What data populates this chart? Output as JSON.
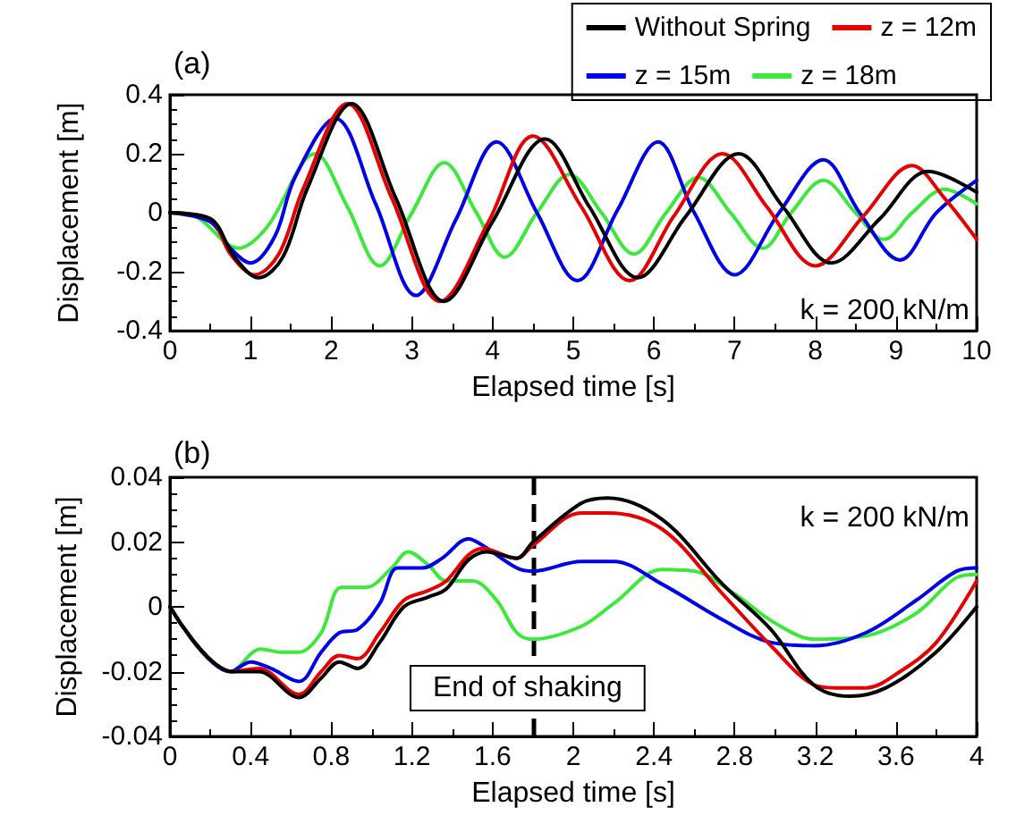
{
  "chart_data": [
    {
      "type": "line",
      "title": "(a)",
      "xlabel": "Elapsed time [s]",
      "ylabel": "Displacement [m]",
      "xlim": [
        0,
        10
      ],
      "xticks": [
        0,
        1,
        2,
        3,
        4,
        5,
        6,
        7,
        8,
        9,
        10
      ],
      "ylim": [
        -0.4,
        0.4
      ],
      "yticks": [
        -0.4,
        -0.2,
        0,
        0.2,
        0.4
      ],
      "grid": false,
      "legend": "top right",
      "marker": "none",
      "line_style": "solid",
      "annotations": [
        "k = 200 kN/m"
      ],
      "series": [
        {
          "name": "Without Spring",
          "color": "#000000",
          "x": [
            0,
            0.5,
            0.8,
            1.1,
            1.4,
            1.7,
            2.25,
            2.8,
            3.4,
            4.0,
            4.65,
            5.2,
            5.8,
            6.4,
            7.05,
            7.6,
            8.2,
            8.8,
            9.4,
            10
          ],
          "values": [
            0,
            -0.02,
            -0.15,
            -0.22,
            -0.15,
            0.08,
            0.37,
            0.05,
            -0.3,
            -0.03,
            0.25,
            0.02,
            -0.22,
            -0.01,
            0.2,
            0.02,
            -0.17,
            -0.02,
            0.14,
            0.07
          ]
        },
        {
          "name": "z = 12m",
          "color": "#e80000",
          "x": [
            0,
            0.5,
            0.75,
            1.05,
            1.35,
            1.65,
            2.2,
            2.75,
            3.35,
            3.95,
            4.5,
            5.1,
            5.7,
            6.25,
            6.85,
            7.4,
            8.0,
            8.6,
            9.2,
            9.6,
            10
          ],
          "values": [
            0,
            -0.02,
            -0.14,
            -0.21,
            -0.14,
            0.08,
            0.37,
            0.05,
            -0.3,
            -0.03,
            0.26,
            0.02,
            -0.23,
            -0.01,
            0.2,
            0.02,
            -0.18,
            -0.01,
            0.16,
            0.05,
            -0.09
          ]
        },
        {
          "name": "z = 15m",
          "color": "#0000e8",
          "x": [
            0,
            0.5,
            0.75,
            1.0,
            1.3,
            1.55,
            2.05,
            2.55,
            3.05,
            3.55,
            4.05,
            4.55,
            5.05,
            5.55,
            6.05,
            6.5,
            7.0,
            7.55,
            8.1,
            8.55,
            9.05,
            9.5,
            10
          ],
          "values": [
            0,
            -0.03,
            -0.12,
            -0.17,
            -0.08,
            0.12,
            0.32,
            0.03,
            -0.28,
            -0.02,
            0.24,
            0,
            -0.23,
            0.01,
            0.24,
            0,
            -0.21,
            0,
            0.18,
            0,
            -0.16,
            0,
            0.11
          ]
        },
        {
          "name": "z = 18m",
          "color": "#3de83d",
          "x": [
            0,
            0.3,
            0.85,
            1.2,
            1.8,
            2.2,
            2.6,
            3.0,
            3.4,
            3.8,
            4.15,
            4.55,
            4.95,
            5.35,
            5.75,
            6.15,
            6.55,
            6.95,
            7.35,
            7.7,
            8.1,
            8.5,
            8.85,
            9.2,
            9.6,
            10
          ],
          "values": [
            0,
            -0.01,
            -0.12,
            -0.05,
            0.2,
            0.02,
            -0.18,
            0,
            0.17,
            0,
            -0.15,
            0,
            0.13,
            0,
            -0.14,
            0,
            0.12,
            0,
            -0.12,
            0,
            0.11,
            0,
            -0.09,
            0,
            0.08,
            0.03
          ]
        }
      ]
    },
    {
      "type": "line",
      "title": "(b)",
      "xlabel": "Elapsed time [s]",
      "ylabel": "Displacement [m]",
      "xlim": [
        0,
        4
      ],
      "xticks": [
        0,
        0.4,
        0.8,
        1.2,
        1.6,
        2,
        2.4,
        2.8,
        3.2,
        3.6,
        4
      ],
      "ylim": [
        -0.04,
        0.04
      ],
      "yticks": [
        -0.04,
        -0.02,
        0,
        0.02,
        0.04
      ],
      "grid": false,
      "legend": false,
      "marker": "none",
      "line_style": "solid",
      "annotations": [
        "End of shaking",
        "k = 200 kN/m"
      ],
      "ref_lines": [
        {
          "axis": "x",
          "value": 1.8,
          "color": "#000000",
          "line_style": "dashed"
        }
      ],
      "series": [
        {
          "color": "#000000",
          "x": [
            0,
            0.31,
            0.44,
            0.64,
            0.75,
            0.84,
            0.93,
            1.04,
            1.16,
            1.28,
            1.37,
            1.48,
            1.57,
            1.72,
            1.8,
            2.04,
            2.17,
            2.44,
            2.74,
            2.98,
            3.19,
            3.37,
            3.55,
            3.79,
            4.0
          ],
          "values": [
            0,
            -0.02,
            -0.02,
            -0.028,
            -0.022,
            -0.017,
            -0.019,
            -0.011,
            0,
            0.003,
            0.0055,
            0.0145,
            0.017,
            0.015,
            0.02,
            0.032,
            0.0336,
            0.027,
            0.007,
            -0.007,
            -0.024,
            -0.0276,
            -0.025,
            -0.0145,
            0
          ]
        },
        {
          "color": "#e80000",
          "x": [
            0,
            0.31,
            0.44,
            0.64,
            0.75,
            0.84,
            0.93,
            1.04,
            1.16,
            1.28,
            1.37,
            1.48,
            1.55,
            1.72,
            1.8,
            2.04,
            2.17,
            2.44,
            2.74,
            2.98,
            3.19,
            3.3,
            3.45,
            3.62,
            3.8,
            4.0
          ],
          "values": [
            0,
            -0.02,
            -0.019,
            -0.027,
            -0.02,
            -0.015,
            -0.016,
            -0.008,
            0.002,
            0.005,
            0.008,
            0.016,
            0.018,
            0.015,
            0.019,
            0.029,
            0.029,
            0.024,
            0.004,
            -0.012,
            -0.024,
            -0.025,
            -0.025,
            -0.02,
            -0.011,
            0.008
          ]
        },
        {
          "color": "#0000e8",
          "x": [
            0,
            0.3,
            0.4,
            0.5,
            0.64,
            0.75,
            0.84,
            0.93,
            1.04,
            1.13,
            1.25,
            1.35,
            1.48,
            1.55,
            1.72,
            1.8,
            2.04,
            2.2,
            2.44,
            2.74,
            2.98,
            3.2,
            3.45,
            3.7,
            3.9,
            4.0
          ],
          "values": [
            0,
            -0.02,
            -0.017,
            -0.019,
            -0.023,
            -0.014,
            -0.008,
            -0.007,
            0.001,
            0.012,
            0.012,
            0.015,
            0.021,
            0.019,
            0.012,
            0.011,
            0.014,
            0.014,
            0.007,
            -0.004,
            -0.011,
            -0.012,
            -0.008,
            0.002,
            0.011,
            0.012
          ]
        },
        {
          "color": "#3de83d",
          "x": [
            0,
            0.3,
            0.45,
            0.55,
            0.64,
            0.75,
            0.85,
            0.97,
            1.1,
            1.18,
            1.28,
            1.37,
            1.5,
            1.62,
            1.72,
            1.8,
            2.04,
            2.2,
            2.44,
            2.6,
            2.8,
            3.0,
            3.2,
            3.45,
            3.7,
            3.9,
            4.0
          ],
          "values": [
            0,
            -0.02,
            -0.013,
            -0.014,
            -0.014,
            -0.008,
            0.006,
            0.006,
            0.012,
            0.017,
            0.013,
            0.008,
            0.008,
            0.002,
            -0.008,
            -0.01,
            -0.006,
            0.001,
            0.0115,
            0.011,
            0.004,
            -0.005,
            -0.01,
            -0.009,
            -0.002,
            0.009,
            0.01
          ]
        }
      ]
    }
  ]
}
